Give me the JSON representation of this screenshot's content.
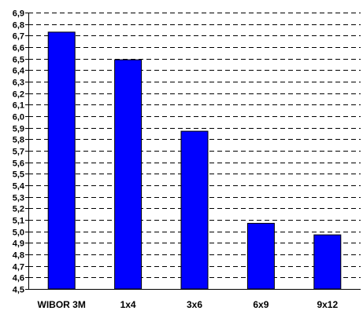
{
  "chart_data": {
    "type": "bar",
    "categories": [
      "WIBOR 3M",
      "1x4",
      "3x6",
      "6x9",
      "9x12"
    ],
    "values": [
      6.73,
      6.49,
      5.87,
      5.07,
      4.97
    ],
    "title": "",
    "xlabel": "",
    "ylabel": "",
    "ylim": [
      4.5,
      6.9
    ],
    "ytick_step": 0.1,
    "ytick_labels": [
      "4,5",
      "4,6",
      "4,7",
      "4,8",
      "4,9",
      "5,0",
      "5,1",
      "5,2",
      "5,3",
      "5,4",
      "5,5",
      "5,6",
      "5,7",
      "5,8",
      "5,9",
      "6,0",
      "6,1",
      "6,2",
      "6,3",
      "6,4",
      "6,5",
      "6,6",
      "6,7",
      "6,8",
      "6,9"
    ],
    "grid": true,
    "legend": "none",
    "bar_color": "#0000FF",
    "bar_edge_color": "#000000"
  }
}
